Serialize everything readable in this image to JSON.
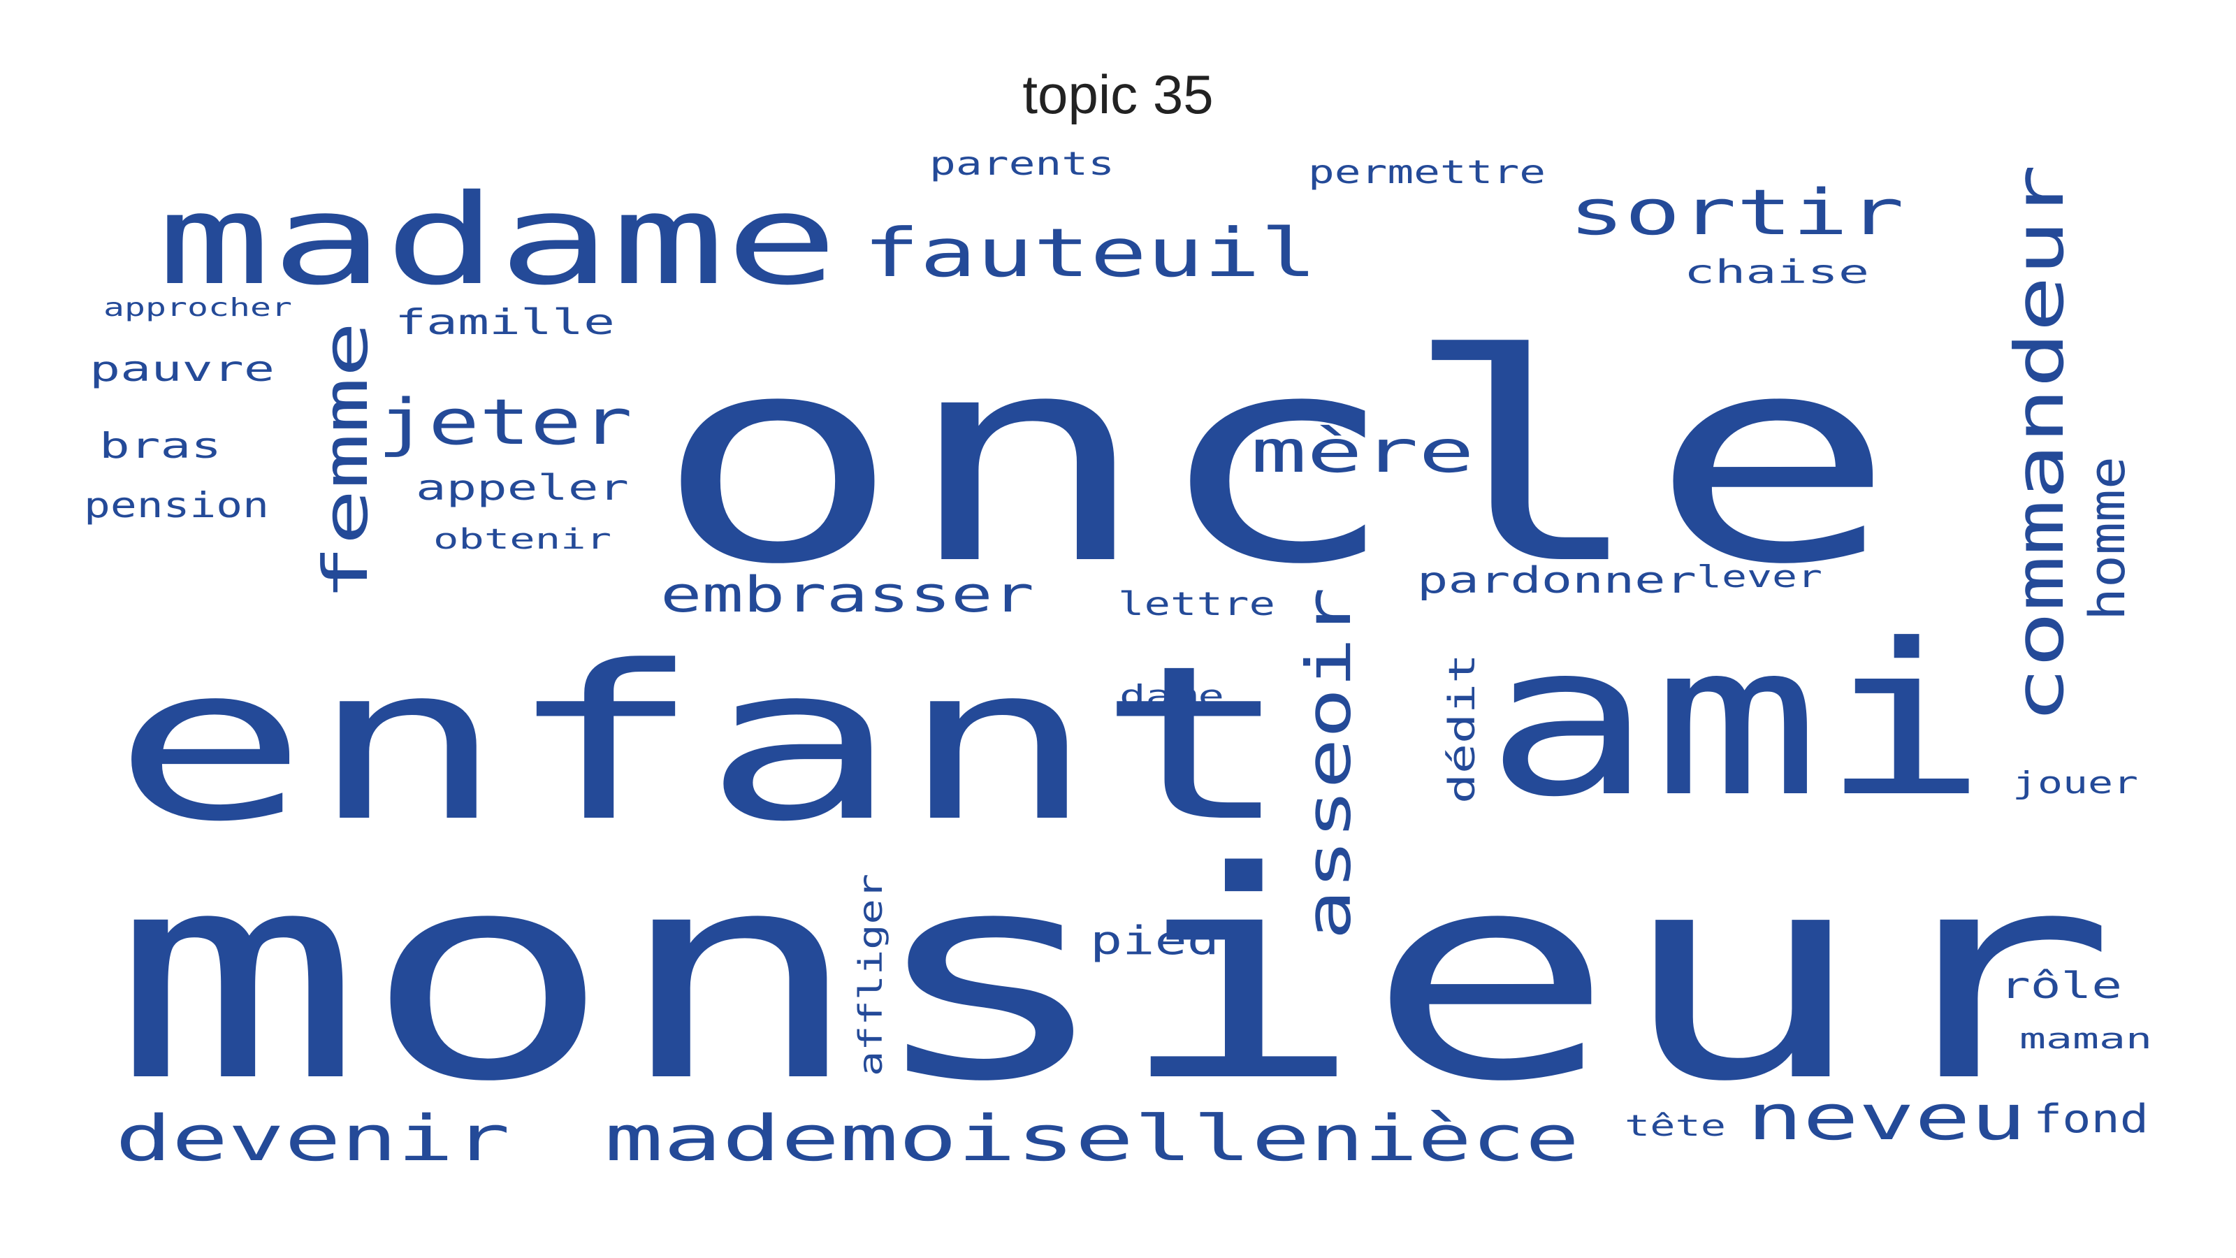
{
  "title": "topic 35",
  "color": "#244a98",
  "words": [
    {
      "text": "monsieur",
      "weight": 1.0
    },
    {
      "text": "oncle",
      "weight": 0.96
    },
    {
      "text": "enfant",
      "weight": 0.72
    },
    {
      "text": "ami",
      "weight": 0.7
    },
    {
      "text": "madame",
      "weight": 0.42
    },
    {
      "text": "commandeur",
      "weight": 0.22
    },
    {
      "text": "fauteuil",
      "weight": 0.22
    },
    {
      "text": "mademoiselle",
      "weight": 0.22
    },
    {
      "text": "nièce",
      "weight": 0.22
    },
    {
      "text": "devenir",
      "weight": 0.22
    },
    {
      "text": "sortir",
      "weight": 0.21
    },
    {
      "text": "femme",
      "weight": 0.21
    },
    {
      "text": "neveu",
      "weight": 0.2
    },
    {
      "text": "asseoir",
      "weight": 0.2
    },
    {
      "text": "jeter",
      "weight": 0.19
    },
    {
      "text": "mère",
      "weight": 0.19
    },
    {
      "text": "embrasser",
      "weight": 0.16
    },
    {
      "text": "homme",
      "weight": 0.15
    },
    {
      "text": "appeler",
      "weight": 0.1
    },
    {
      "text": "pardonner",
      "weight": 0.1
    },
    {
      "text": "famille",
      "weight": 0.1
    },
    {
      "text": "pauvre",
      "weight": 0.1
    },
    {
      "text": "bras",
      "weight": 0.1
    },
    {
      "text": "pension",
      "weight": 0.1
    },
    {
      "text": "pied",
      "weight": 0.1
    },
    {
      "text": "rôle",
      "weight": 0.1
    },
    {
      "text": "chaise",
      "weight": 0.09
    },
    {
      "text": "permettre",
      "weight": 0.09
    },
    {
      "text": "dédit",
      "weight": 0.09
    },
    {
      "text": "parents",
      "weight": 0.09
    },
    {
      "text": "fond",
      "weight": 0.09
    },
    {
      "text": "affliger",
      "weight": 0.09
    },
    {
      "text": "obtenir",
      "weight": 0.08
    },
    {
      "text": "lettre",
      "weight": 0.08
    },
    {
      "text": "lever",
      "weight": 0.08
    },
    {
      "text": "jouer",
      "weight": 0.08
    },
    {
      "text": "dame",
      "weight": 0.07
    },
    {
      "text": "maman",
      "weight": 0.07
    },
    {
      "text": "approcher",
      "weight": 0.07
    },
    {
      "text": "tête",
      "weight": 0.07
    }
  ]
}
